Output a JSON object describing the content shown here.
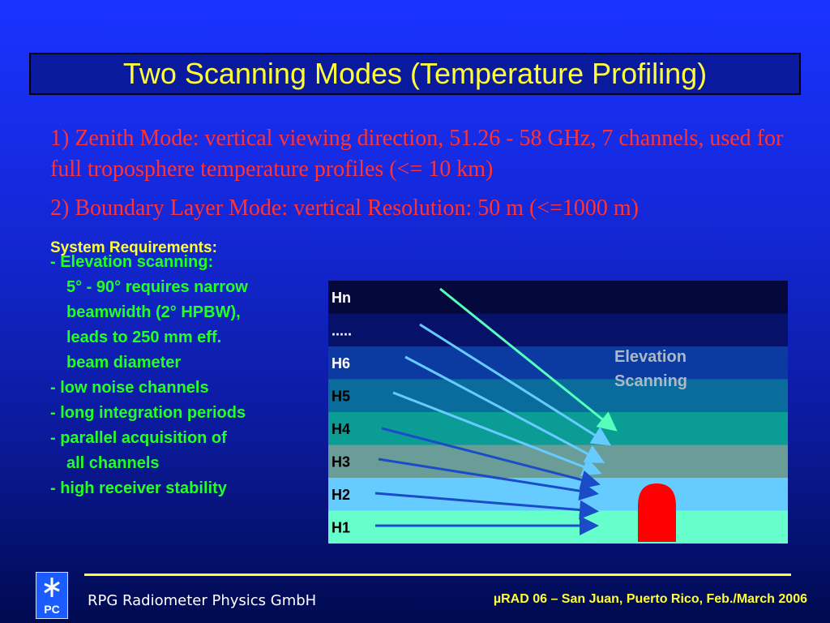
{
  "slide": {
    "title": "Two Scanning Modes (Temperature Profiling)",
    "mode1": "1) Zenith Mode: vertical viewing direction, 51.26 - 58 GHz, 7 channels, used for full troposphere temperature profiles (<= 10 km)",
    "mode2": "2) Boundary Layer Mode: vertical Resolution: 50 m (<=1000 m)",
    "requirements_title": "System Requirements:",
    "requirements": [
      {
        "text": "-  Elevation scanning:",
        "indent": false
      },
      {
        "text": "5° - 90° requires narrow",
        "indent": true
      },
      {
        "text": "beamwidth (2° HPBW),",
        "indent": true
      },
      {
        "text": "leads to 250 mm eff.",
        "indent": true
      },
      {
        "text": "beam diameter",
        "indent": true
      },
      {
        "text": "-  low noise channels",
        "indent": false
      },
      {
        "text": "-  long integration periods",
        "indent": false
      },
      {
        "text": "-  parallel acquisition of",
        "indent": false
      },
      {
        "text": "all channels",
        "indent": true
      },
      {
        "text": "-  high receiver stability",
        "indent": false
      }
    ]
  },
  "diagram": {
    "layers": [
      {
        "label": "Hn",
        "color": "#04083a"
      },
      {
        "label": ".....",
        "color": "#06126a"
      },
      {
        "label": "H6",
        "color": "#0b3aa0"
      },
      {
        "label": "H5",
        "color": "#0a6c9c"
      },
      {
        "label": "H4",
        "color": "#0c9c96"
      },
      {
        "label": "H3",
        "color": "#6a9c98"
      },
      {
        "label": "H2",
        "color": "#66ccff"
      },
      {
        "label": "H1",
        "color": "#66ffcc"
      }
    ],
    "annotation_line1": "Elevation",
    "annotation_line2": "Scanning",
    "colors": {
      "label": "#000000",
      "label_dark": "#ffffff",
      "annotation": "#aab8c8",
      "radiometer": "#ff0000"
    }
  },
  "footer": {
    "company": "RPG Radiometer Physics GmbH",
    "conference": "µRAD 06  – San Juan, Puerto Rico,  Feb./March  2006",
    "logo_text": "PC"
  }
}
